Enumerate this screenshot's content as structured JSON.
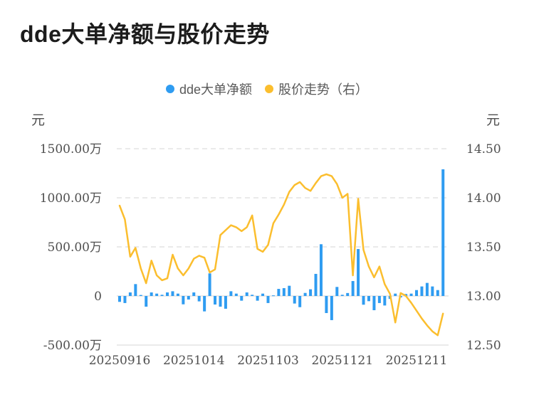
{
  "title": "dde大单净额与股价走势",
  "legend": {
    "items": [
      {
        "label": "dde大单净额",
        "color": "#2f9cf1",
        "marker": "circle-icon"
      },
      {
        "label": "股价走势（右）",
        "color": "#fbbe2e",
        "marker": "circle-icon"
      }
    ]
  },
  "chart_data": {
    "type": "combo",
    "title": "dde大单净额与股价走势",
    "background": "#ffffff",
    "grid": {
      "horizontal_gridlines": "dashed",
      "zero_line": "solid",
      "gridline_color": "#e3e3e3"
    },
    "x": {
      "n_points": 62,
      "tick_indices": [
        0,
        14,
        28,
        42,
        56
      ],
      "tick_labels": [
        "20250916",
        "20251014",
        "20251103",
        "20251121",
        "20251211"
      ]
    },
    "left_axis": {
      "unit": "元",
      "tick_labels": [
        "1500.00万",
        "1000.00万",
        "500.00万",
        "0",
        "-500.00万"
      ],
      "tick_values_wan": [
        1500,
        1000,
        500,
        0,
        -500
      ],
      "range_wan": [
        -500,
        1500
      ]
    },
    "right_axis": {
      "unit": "元",
      "tick_labels": [
        "14.50",
        "14.00",
        "13.50",
        "13.00",
        "12.50"
      ],
      "tick_values": [
        14.5,
        14.0,
        13.5,
        13.0,
        12.5
      ],
      "range": [
        12.5,
        14.5
      ]
    },
    "series": [
      {
        "name": "dde大单净额",
        "type": "bar",
        "axis": "left",
        "unit": "万元",
        "color": "#2f9cf1",
        "values_wan": [
          -60,
          -72,
          36,
          121,
          10,
          -109,
          36,
          24,
          12,
          36,
          48,
          24,
          -85,
          -36,
          36,
          -55,
          -157,
          230,
          -87,
          -109,
          -130,
          48,
          24,
          -48,
          36,
          12,
          -48,
          24,
          -72,
          6,
          72,
          80,
          104,
          -77,
          -114,
          31,
          68,
          225,
          527,
          -174,
          -246,
          92,
          12,
          30,
          152,
          478,
          -89,
          -53,
          -145,
          -72,
          -97,
          -30,
          24,
          -15,
          20,
          24,
          60,
          97,
          133,
          97,
          60,
          1290
        ]
      },
      {
        "name": "股价走势（右）",
        "type": "line",
        "axis": "right",
        "unit": "元",
        "color": "#fbbe2e",
        "values": [
          13.92,
          13.78,
          13.4,
          13.49,
          13.28,
          13.13,
          13.36,
          13.21,
          13.16,
          13.18,
          13.42,
          13.28,
          13.21,
          13.28,
          13.38,
          13.41,
          13.39,
          13.24,
          13.27,
          13.62,
          13.67,
          13.72,
          13.7,
          13.66,
          13.7,
          13.82,
          13.48,
          13.45,
          13.52,
          13.74,
          13.83,
          13.93,
          14.06,
          14.13,
          14.16,
          14.1,
          14.07,
          14.15,
          14.22,
          14.24,
          14.22,
          14.14,
          14.0,
          14.04,
          13.21,
          13.99,
          13.47,
          13.3,
          13.19,
          13.3,
          13.12,
          13.02,
          12.73,
          13.03,
          13.0,
          12.93,
          12.85,
          12.77,
          12.7,
          12.64,
          12.6,
          12.82
        ]
      }
    ]
  }
}
